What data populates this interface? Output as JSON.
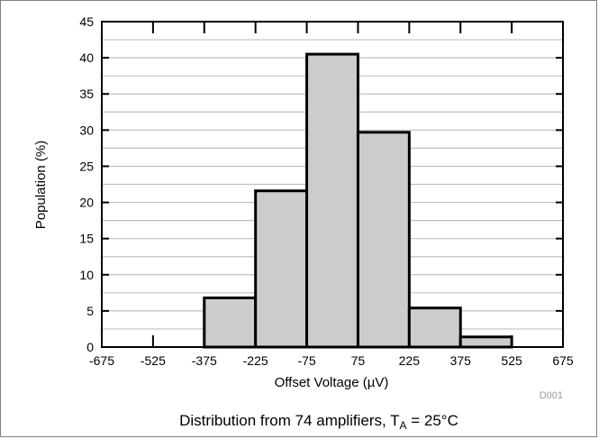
{
  "chart_data": {
    "type": "bar",
    "title": "",
    "xlabel": "Offset Voltage (µV)",
    "ylabel": "Population (%)",
    "xlim": [
      -675,
      675
    ],
    "ylim": [
      0,
      45
    ],
    "x_ticks": [
      "-675",
      "-525",
      "-375",
      "-225",
      "-75",
      "75",
      "225",
      "375",
      "525",
      "675"
    ],
    "y_ticks": [
      "0",
      "5",
      "10",
      "15",
      "20",
      "25",
      "30",
      "35",
      "40",
      "45"
    ],
    "bins": [
      {
        "from": -675,
        "to": -525,
        "value": 0
      },
      {
        "from": -525,
        "to": -375,
        "value": 0
      },
      {
        "from": -375,
        "to": -225,
        "value": 6.8
      },
      {
        "from": -225,
        "to": -75,
        "value": 21.6
      },
      {
        "from": -75,
        "to": 75,
        "value": 40.5
      },
      {
        "from": 75,
        "to": 225,
        "value": 29.7
      },
      {
        "from": 225,
        "to": 375,
        "value": 5.4
      },
      {
        "from": 375,
        "to": 525,
        "value": 1.4
      }
    ],
    "bar_color": "#cccccc",
    "edge_color": "#000000",
    "grid": true,
    "grid_color": "#c0c0c0",
    "figure_id": "D001",
    "caption": {
      "text": "Distribution from 74 amplifiers, T",
      "subscript": "A",
      "suffix": " = 25°C"
    }
  }
}
